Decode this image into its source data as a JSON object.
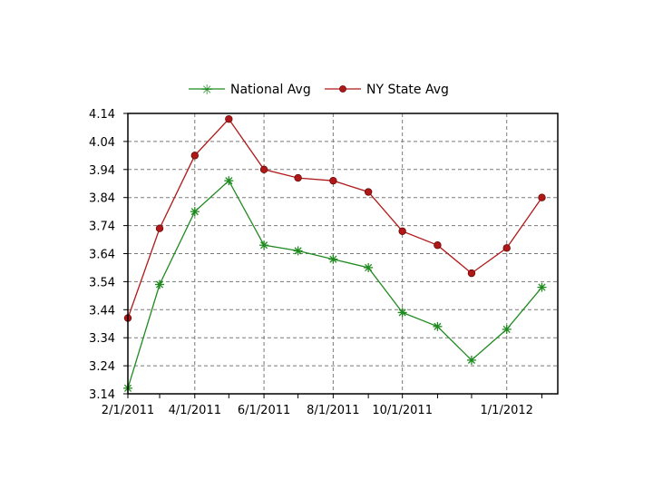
{
  "chart_data": {
    "type": "line",
    "x": [
      "2/1/2011",
      "3/1/2011",
      "4/1/2011",
      "5/1/2011",
      "6/1/2011",
      "7/1/2011",
      "8/1/2011",
      "9/1/2011",
      "10/1/2011",
      "11/1/2011",
      "12/1/2011",
      "1/1/2012",
      "2/1/2012"
    ],
    "x_tick_labels": [
      "2/1/2011",
      "4/1/2011",
      "6/1/2011",
      "8/1/2011",
      "10/1/2011",
      "1/1/2012"
    ],
    "x_range": [
      "2/1/2011",
      "2/15/2012"
    ],
    "y_ticks": [
      "3.14",
      "3.24",
      "3.34",
      "3.44",
      "3.54",
      "3.64",
      "3.74",
      "3.84",
      "3.94",
      "4.04",
      "4.14"
    ],
    "ylim": [
      3.14,
      4.14
    ],
    "grid": true,
    "legend_position": "top",
    "series": [
      {
        "name": "National Avg",
        "color": "#1f8a1f",
        "marker": "asterisk",
        "values": [
          3.16,
          3.53,
          3.79,
          3.9,
          3.67,
          3.65,
          3.62,
          3.59,
          3.43,
          3.38,
          3.26,
          3.37,
          3.52
        ]
      },
      {
        "name": "NY State Avg",
        "color": "#b01818",
        "marker": "circle",
        "values": [
          3.41,
          3.73,
          3.99,
          4.12,
          3.94,
          3.91,
          3.9,
          3.86,
          3.72,
          3.67,
          3.57,
          3.66,
          3.84
        ]
      }
    ],
    "title": "",
    "xlabel": "",
    "ylabel": ""
  }
}
